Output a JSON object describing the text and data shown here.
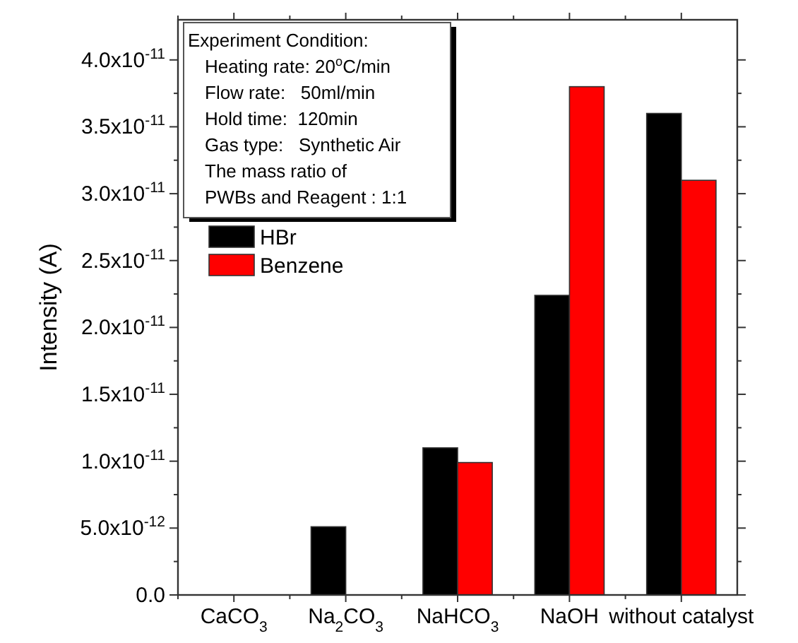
{
  "chart_data": {
    "type": "bar",
    "ylabel": "Intensity (A)",
    "categories": [
      "CaCO$_{3}$",
      "Na$_{2}$CO$_{3}$",
      "NaHCO$_{3}$",
      "NaOH",
      "without catalyst"
    ],
    "series": [
      {
        "name": "HBr",
        "color": "#000000",
        "values": [
          0,
          5.1e-12,
          1.1e-11,
          2.24e-11,
          3.6e-11
        ]
      },
      {
        "name": "Benzene",
        "color": "#ff0000",
        "values": [
          0,
          0,
          9.9e-12,
          3.8e-11,
          3.1e-11
        ]
      }
    ],
    "ylim": [
      0,
      4.3e-11
    ],
    "yticks": [
      {
        "value": 0,
        "label": "0.0"
      },
      {
        "value": 5e-12,
        "label": "5.0x10$^{-12}$"
      },
      {
        "value": 1e-11,
        "label": "1.0x10$^{-11}$"
      },
      {
        "value": 1.5e-11,
        "label": "1.5x10$^{-11}$"
      },
      {
        "value": 2e-11,
        "label": "2.0x10$^{-11}$"
      },
      {
        "value": 2.5e-11,
        "label": "2.5x10$^{-11}$"
      },
      {
        "value": 3e-11,
        "label": "3.0x10$^{-11}$"
      },
      {
        "value": 3.5e-11,
        "label": "3.5x10$^{-11}$"
      },
      {
        "value": 4e-11,
        "label": "4.0x10$^{-11}$"
      }
    ],
    "annotations": [
      "Experiment Condition:",
      "Heating rate: 20$^{o}$C/min",
      "Flow rate:   50ml/min",
      "Hold time:  120min",
      "Gas type:   Synthetic Air",
      "The mass ratio of",
      "PWBs and Reagent : 1:1"
    ],
    "legend": "left"
  }
}
